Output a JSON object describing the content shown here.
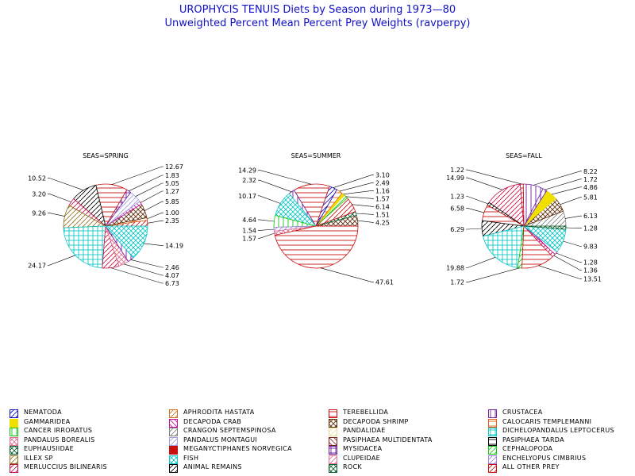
{
  "title": "UROPHYCIS TENUIS Diets by Season during 1973—80",
  "subtitle": "Unweighted Percent Mean Percent Prey  Weights (ravperpy)",
  "chart_data": [
    {
      "type": "pie",
      "title": "SEAS=SPRING",
      "slices": [
        {
          "category": "ALL OTHER PREY",
          "value": 2.35
        },
        {
          "category": "CALOCARIS TEMPLEMANNI",
          "value": 1.0
        },
        {
          "category": "DECAPODA SHRIMP",
          "value": 5.85
        },
        {
          "category": "DECAPODA CRAB",
          "value": 1.27
        },
        {
          "category": "PANDALUS MONTAGUI",
          "value": 5.05
        },
        {
          "category": "MYSIDACEA",
          "value": 1.83
        },
        {
          "category": "TEREBELLIDA",
          "value": 12.67
        },
        {
          "category": "ANIMAL REMAINS",
          "value": 10.52
        },
        {
          "category": "MERLUCCIUS BILINEARIS",
          "value": 3.2
        },
        {
          "category": "ILLEX SP",
          "value": 9.26
        },
        {
          "category": "DICHELOPANDALUS LEPTOCERUS",
          "value": 24.17
        },
        {
          "category": "MERLUCCIUS BILINEARIS",
          "value": 6.73
        },
        {
          "category": "PANDALUS BOREALIS",
          "value": 4.07
        },
        {
          "category": "CRUSTACEA",
          "value": 2.46
        },
        {
          "category": "FISH",
          "value": 14.19
        }
      ]
    },
    {
      "type": "pie",
      "title": "SEAS=SUMMER",
      "slices": [
        {
          "category": "DECAPODA SHRIMP",
          "value": 4.25
        },
        {
          "category": "EUPHAUSIIDAE",
          "value": 1.51
        },
        {
          "category": "ALL OTHER PREY",
          "value": 6.14
        },
        {
          "category": "CEPHALOPODA",
          "value": 1.57
        },
        {
          "category": "GAMMARIDEA",
          "value": 1.16
        },
        {
          "category": "CALOCARIS TEMPLEMANNI",
          "value": 2.49
        },
        {
          "category": "NEMATODA",
          "value": 3.1
        },
        {
          "category": "TEREBELLIDA",
          "value": 14.29
        },
        {
          "category": "CRUSTACEA",
          "value": 2.32
        },
        {
          "category": "FISH",
          "value": 10.17
        },
        {
          "category": "CANCER IRRORATUS",
          "value": 4.64
        },
        {
          "category": "ENCHELYOPUS CIMBRIUS",
          "value": 1.54
        },
        {
          "category": "PANDALUS BOREALIS",
          "value": 1.57
        },
        {
          "category": "TEREBELLIDA",
          "value": 47.61
        }
      ]
    },
    {
      "type": "pie",
      "title": "SEAS=FALL",
      "slices": [
        {
          "category": "CRANGON SEPTEMSPINOSA",
          "value": 6.13
        },
        {
          "category": "DECAPODA SHRIMP",
          "value": 5.81
        },
        {
          "category": "GAMMARIDEA",
          "value": 4.86
        },
        {
          "category": "CRUSTACEA",
          "value": 1.72
        },
        {
          "category": "CRUSTACEA",
          "value": 8.22
        },
        {
          "category": "TEREBELLIDA",
          "value": 1.22
        },
        {
          "category": "MERLUCCIUS BILINEARIS",
          "value": 14.99
        },
        {
          "category": "ANIMAL REMAINS",
          "value": 1.23
        },
        {
          "category": "TEREBELLIDA",
          "value": 6.58
        },
        {
          "category": "ANIMAL REMAINS",
          "value": 6.29
        },
        {
          "category": "DICHELOPANDALUS LEPTOCERUS",
          "value": 19.88
        },
        {
          "category": "CEPHALOPODA",
          "value": 1.72
        },
        {
          "category": "TEREBELLIDA",
          "value": 13.51
        },
        {
          "category": "MERLUCCIUS BILINEARIS",
          "value": 1.36
        },
        {
          "category": "DECAPODA CRAB",
          "value": 1.28
        },
        {
          "category": "FISH",
          "value": 9.83
        },
        {
          "category": "EUPHAUSIIDAE",
          "value": 1.28
        }
      ]
    }
  ],
  "legend": [
    {
      "label": "NEMATODA",
      "color": "#1010c8",
      "pattern": "slash"
    },
    {
      "label": "APHRODITA HASTATA",
      "color": "#d07020",
      "pattern": "slash"
    },
    {
      "label": "TEREBELLIDA",
      "color": "#c81010",
      "pattern": "horiz"
    },
    {
      "label": "CRUSTACEA",
      "color": "#7020a0",
      "pattern": "vert"
    },
    {
      "label": "GAMMARIDEA",
      "color": "#f0e000",
      "pattern": "solid"
    },
    {
      "label": "DECAPODA CRAB",
      "color": "#c810a0",
      "pattern": "backslash"
    },
    {
      "label": "DECAPODA SHRIMP",
      "color": "#603010",
      "pattern": "crosshatch"
    },
    {
      "label": "CALOCARIS TEMPLEMANNI",
      "color": "#e06010",
      "pattern": "horiz"
    },
    {
      "label": "CANCER IRRORATUS",
      "color": "#10c810",
      "pattern": "vert"
    },
    {
      "label": "CRANGON SEPTEMSPINOSA",
      "color": "#808080",
      "pattern": "slash"
    },
    {
      "label": "PANDALIDAE",
      "color": "#e8e0a0",
      "pattern": "slash"
    },
    {
      "label": "DICHELOPANDALUS LEPTOCERUS",
      "color": "#10c8c8",
      "pattern": "grid"
    },
    {
      "label": "PANDALUS BOREALIS",
      "color": "#e07090",
      "pattern": "crosshatch"
    },
    {
      "label": "PANDALUS MONTAGUI",
      "color": "#a0a0e0",
      "pattern": "slash"
    },
    {
      "label": "PASIPHAEA MULTIDENTATA",
      "color": "#802020",
      "pattern": "backslash"
    },
    {
      "label": "PASIPHAEA TARDA",
      "color": "#000000",
      "pattern": "horiz"
    },
    {
      "label": "EUPHAUSIIDAE",
      "color": "#106030",
      "pattern": "crosshatch"
    },
    {
      "label": "MEGANYCTIPHANES NORVEGICA",
      "color": "#c81010",
      "pattern": "solid"
    },
    {
      "label": "MYSIDACEA",
      "color": "#7020a0",
      "pattern": "grid"
    },
    {
      "label": "CEPHALOPODA",
      "color": "#10c810",
      "pattern": "slash"
    },
    {
      "label": "ILLEX SP",
      "color": "#907020",
      "pattern": "slash"
    },
    {
      "label": "FISH",
      "color": "#10c8c8",
      "pattern": "crosshatch"
    },
    {
      "label": "CLUPEIDAE",
      "color": "#e07090",
      "pattern": "slash"
    },
    {
      "label": "ENCHELYOPUS CIMBRIUS",
      "color": "#a080e0",
      "pattern": "slash"
    },
    {
      "label": "MERLUCCIUS BILINEARIS",
      "color": "#c81040",
      "pattern": "slash"
    },
    {
      "label": "ANIMAL REMAINS",
      "color": "#000000",
      "pattern": "slash"
    },
    {
      "label": "ROCK",
      "color": "#106030",
      "pattern": "crosshatch"
    },
    {
      "label": "ALL OTHER PREY",
      "color": "#c81010",
      "pattern": "slash"
    }
  ]
}
